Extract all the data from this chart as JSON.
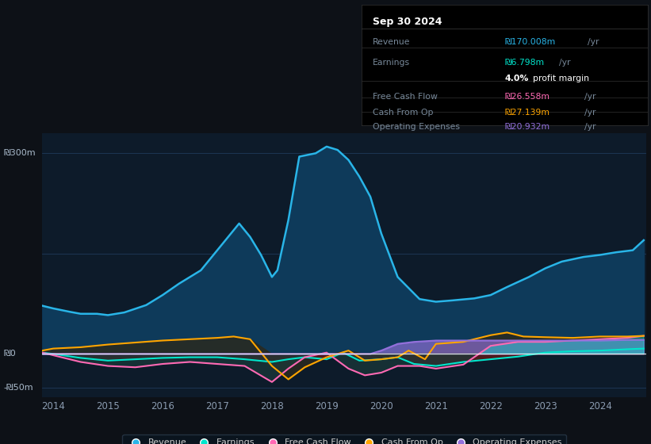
{
  "bg_color": "#0d1117",
  "plot_bg_color": "#0d1b2a",
  "grid_color": "#1e3050",
  "revenue_color": "#29b5e8",
  "earnings_color": "#00e5cc",
  "free_cash_flow_color": "#ff69b4",
  "cash_from_op_color": "#ffa500",
  "operating_expenses_color": "#9370db",
  "revenue_fill_color": "#0e3a5a",
  "earnings_fill_color": "#1a3a3a",
  "earnings_neg_fill": "#3d1a1a",
  "cfo_fill_color": "#2a2a1a",
  "opex_fill_color": "#2a1a4a",
  "y_label_300": "₪300m",
  "y_label_0": "₪0",
  "y_label_neg50": "-₪50m",
  "rev_x": [
    2013.8,
    2014.0,
    2014.3,
    2014.5,
    2014.8,
    2015.0,
    2015.3,
    2015.7,
    2016.0,
    2016.3,
    2016.7,
    2017.0,
    2017.2,
    2017.4,
    2017.6,
    2017.8,
    2018.0,
    2018.1,
    2018.3,
    2018.5,
    2018.8,
    2019.0,
    2019.2,
    2019.4,
    2019.6,
    2019.8,
    2020.0,
    2020.3,
    2020.7,
    2021.0,
    2021.3,
    2021.7,
    2022.0,
    2022.3,
    2022.7,
    2023.0,
    2023.3,
    2023.7,
    2024.0,
    2024.3,
    2024.6,
    2024.8
  ],
  "rev_y": [
    72,
    68,
    63,
    60,
    60,
    58,
    62,
    73,
    88,
    105,
    125,
    155,
    175,
    195,
    175,
    148,
    115,
    125,
    200,
    295,
    300,
    310,
    305,
    290,
    265,
    235,
    180,
    115,
    82,
    78,
    80,
    83,
    88,
    100,
    115,
    128,
    138,
    145,
    148,
    152,
    155,
    170
  ],
  "earn_x": [
    2013.8,
    2014.0,
    2014.5,
    2015.0,
    2015.5,
    2016.0,
    2016.5,
    2017.0,
    2017.5,
    2018.0,
    2018.3,
    2018.6,
    2019.0,
    2019.3,
    2019.6,
    2020.0,
    2020.3,
    2020.6,
    2021.0,
    2021.5,
    2022.0,
    2022.5,
    2023.0,
    2023.5,
    2024.0,
    2024.5,
    2024.8
  ],
  "earn_y": [
    2,
    0,
    -6,
    -10,
    -8,
    -6,
    -5,
    -5,
    -8,
    -12,
    -8,
    -5,
    -8,
    2,
    -10,
    -8,
    -5,
    -15,
    -18,
    -12,
    -8,
    -4,
    2,
    4,
    5,
    7,
    8
  ],
  "fcf_x": [
    2013.8,
    2014.0,
    2014.5,
    2015.0,
    2015.5,
    2016.0,
    2016.5,
    2017.0,
    2017.5,
    2018.0,
    2018.3,
    2018.6,
    2019.0,
    2019.4,
    2019.7,
    2020.0,
    2020.3,
    2020.7,
    2021.0,
    2021.5,
    2022.0,
    2022.5,
    2023.0,
    2023.5,
    2024.0,
    2024.5,
    2024.8
  ],
  "fcf_y": [
    2,
    -2,
    -12,
    -18,
    -20,
    -15,
    -12,
    -15,
    -18,
    -42,
    -22,
    -5,
    2,
    -22,
    -32,
    -28,
    -18,
    -18,
    -22,
    -16,
    12,
    18,
    18,
    20,
    22,
    24,
    27
  ],
  "cfo_x": [
    2013.8,
    2014.0,
    2014.5,
    2015.0,
    2015.5,
    2016.0,
    2016.5,
    2017.0,
    2017.3,
    2017.6,
    2018.0,
    2018.3,
    2018.6,
    2019.0,
    2019.4,
    2019.7,
    2020.0,
    2020.3,
    2020.5,
    2020.8,
    2021.0,
    2021.5,
    2022.0,
    2022.3,
    2022.6,
    2023.0,
    2023.5,
    2024.0,
    2024.5,
    2024.8
  ],
  "cfo_y": [
    5,
    8,
    10,
    14,
    17,
    20,
    22,
    24,
    26,
    22,
    -18,
    -38,
    -20,
    -5,
    5,
    -10,
    -8,
    -5,
    5,
    -8,
    15,
    18,
    28,
    32,
    26,
    25,
    24,
    26,
    26,
    27
  ],
  "opex_x": [
    2013.8,
    2019.4,
    2019.8,
    2020.0,
    2020.3,
    2020.6,
    2021.0,
    2021.3,
    2021.6,
    2022.0,
    2022.5,
    2023.0,
    2023.5,
    2024.0,
    2024.5,
    2024.8
  ],
  "opex_y": [
    0,
    0,
    0,
    5,
    15,
    18,
    20,
    20,
    20,
    20,
    20,
    20,
    20,
    20,
    21,
    21
  ],
  "legend_items": [
    "Revenue",
    "Earnings",
    "Free Cash Flow",
    "Cash From Op",
    "Operating Expenses"
  ]
}
